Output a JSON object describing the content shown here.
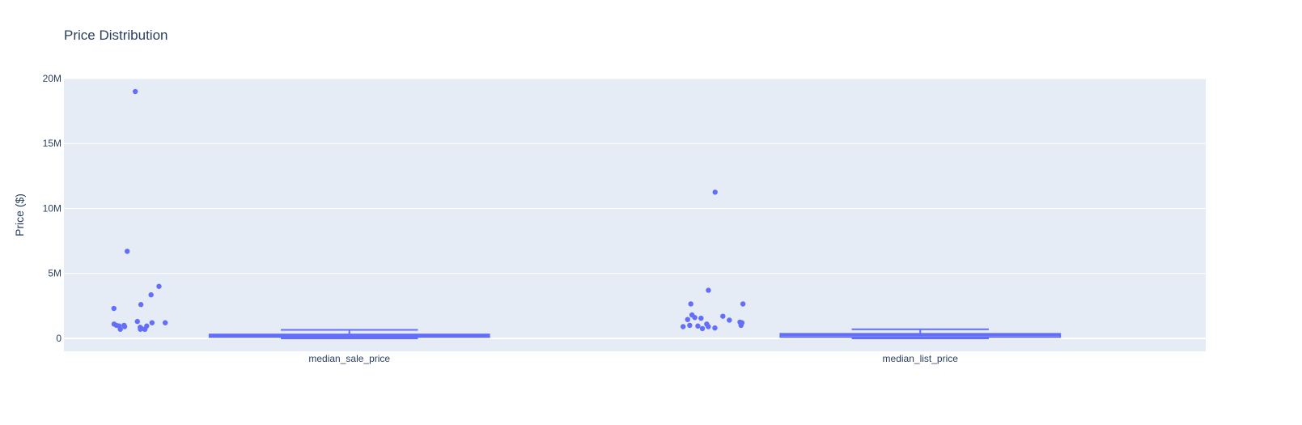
{
  "chart_data": {
    "type": "box",
    "title": "Price Distribution",
    "ylabel": "Price ($)",
    "xlabel": "",
    "ylim": [
      -1000000,
      20000000
    ],
    "yticks": [
      {
        "value": 0,
        "label": "0"
      },
      {
        "value": 5000000,
        "label": "5M"
      },
      {
        "value": 10000000,
        "label": "10M"
      },
      {
        "value": 15000000,
        "label": "15M"
      },
      {
        "value": 20000000,
        "label": "20M"
      }
    ],
    "grid": true,
    "legend": "none",
    "colors": {
      "plot_bg": "#e5ecf6",
      "grid": "#ffffff",
      "series": "#636efa",
      "box_fill": "#636efa"
    },
    "categories": [
      "median_sale_price",
      "median_list_price"
    ],
    "boxes": [
      {
        "category": "median_sale_price",
        "q1": 100000,
        "median": 200000,
        "q3": 300000,
        "lowerfence": 0,
        "upperfence": 650000,
        "points": [
          700000,
          700000,
          1000000,
          900000,
          1300000,
          750000,
          1100000,
          1200000,
          950000,
          19000000,
          6700000,
          4000000,
          3350000,
          2300000,
          2600000,
          1000000,
          1200000,
          950000,
          700000,
          850000,
          700000
        ]
      },
      {
        "category": "median_list_price",
        "q1": 100000,
        "median": 250000,
        "q3": 350000,
        "lowerfence": 0,
        "upperfence": 700000,
        "points": [
          900000,
          1250000,
          1200000,
          1450000,
          900000,
          1000000,
          1800000,
          1100000,
          11250000,
          1700000,
          950000,
          2650000,
          2650000,
          3700000,
          1600000,
          800000,
          1550000,
          1000000,
          1400000,
          750000
        ]
      }
    ]
  }
}
